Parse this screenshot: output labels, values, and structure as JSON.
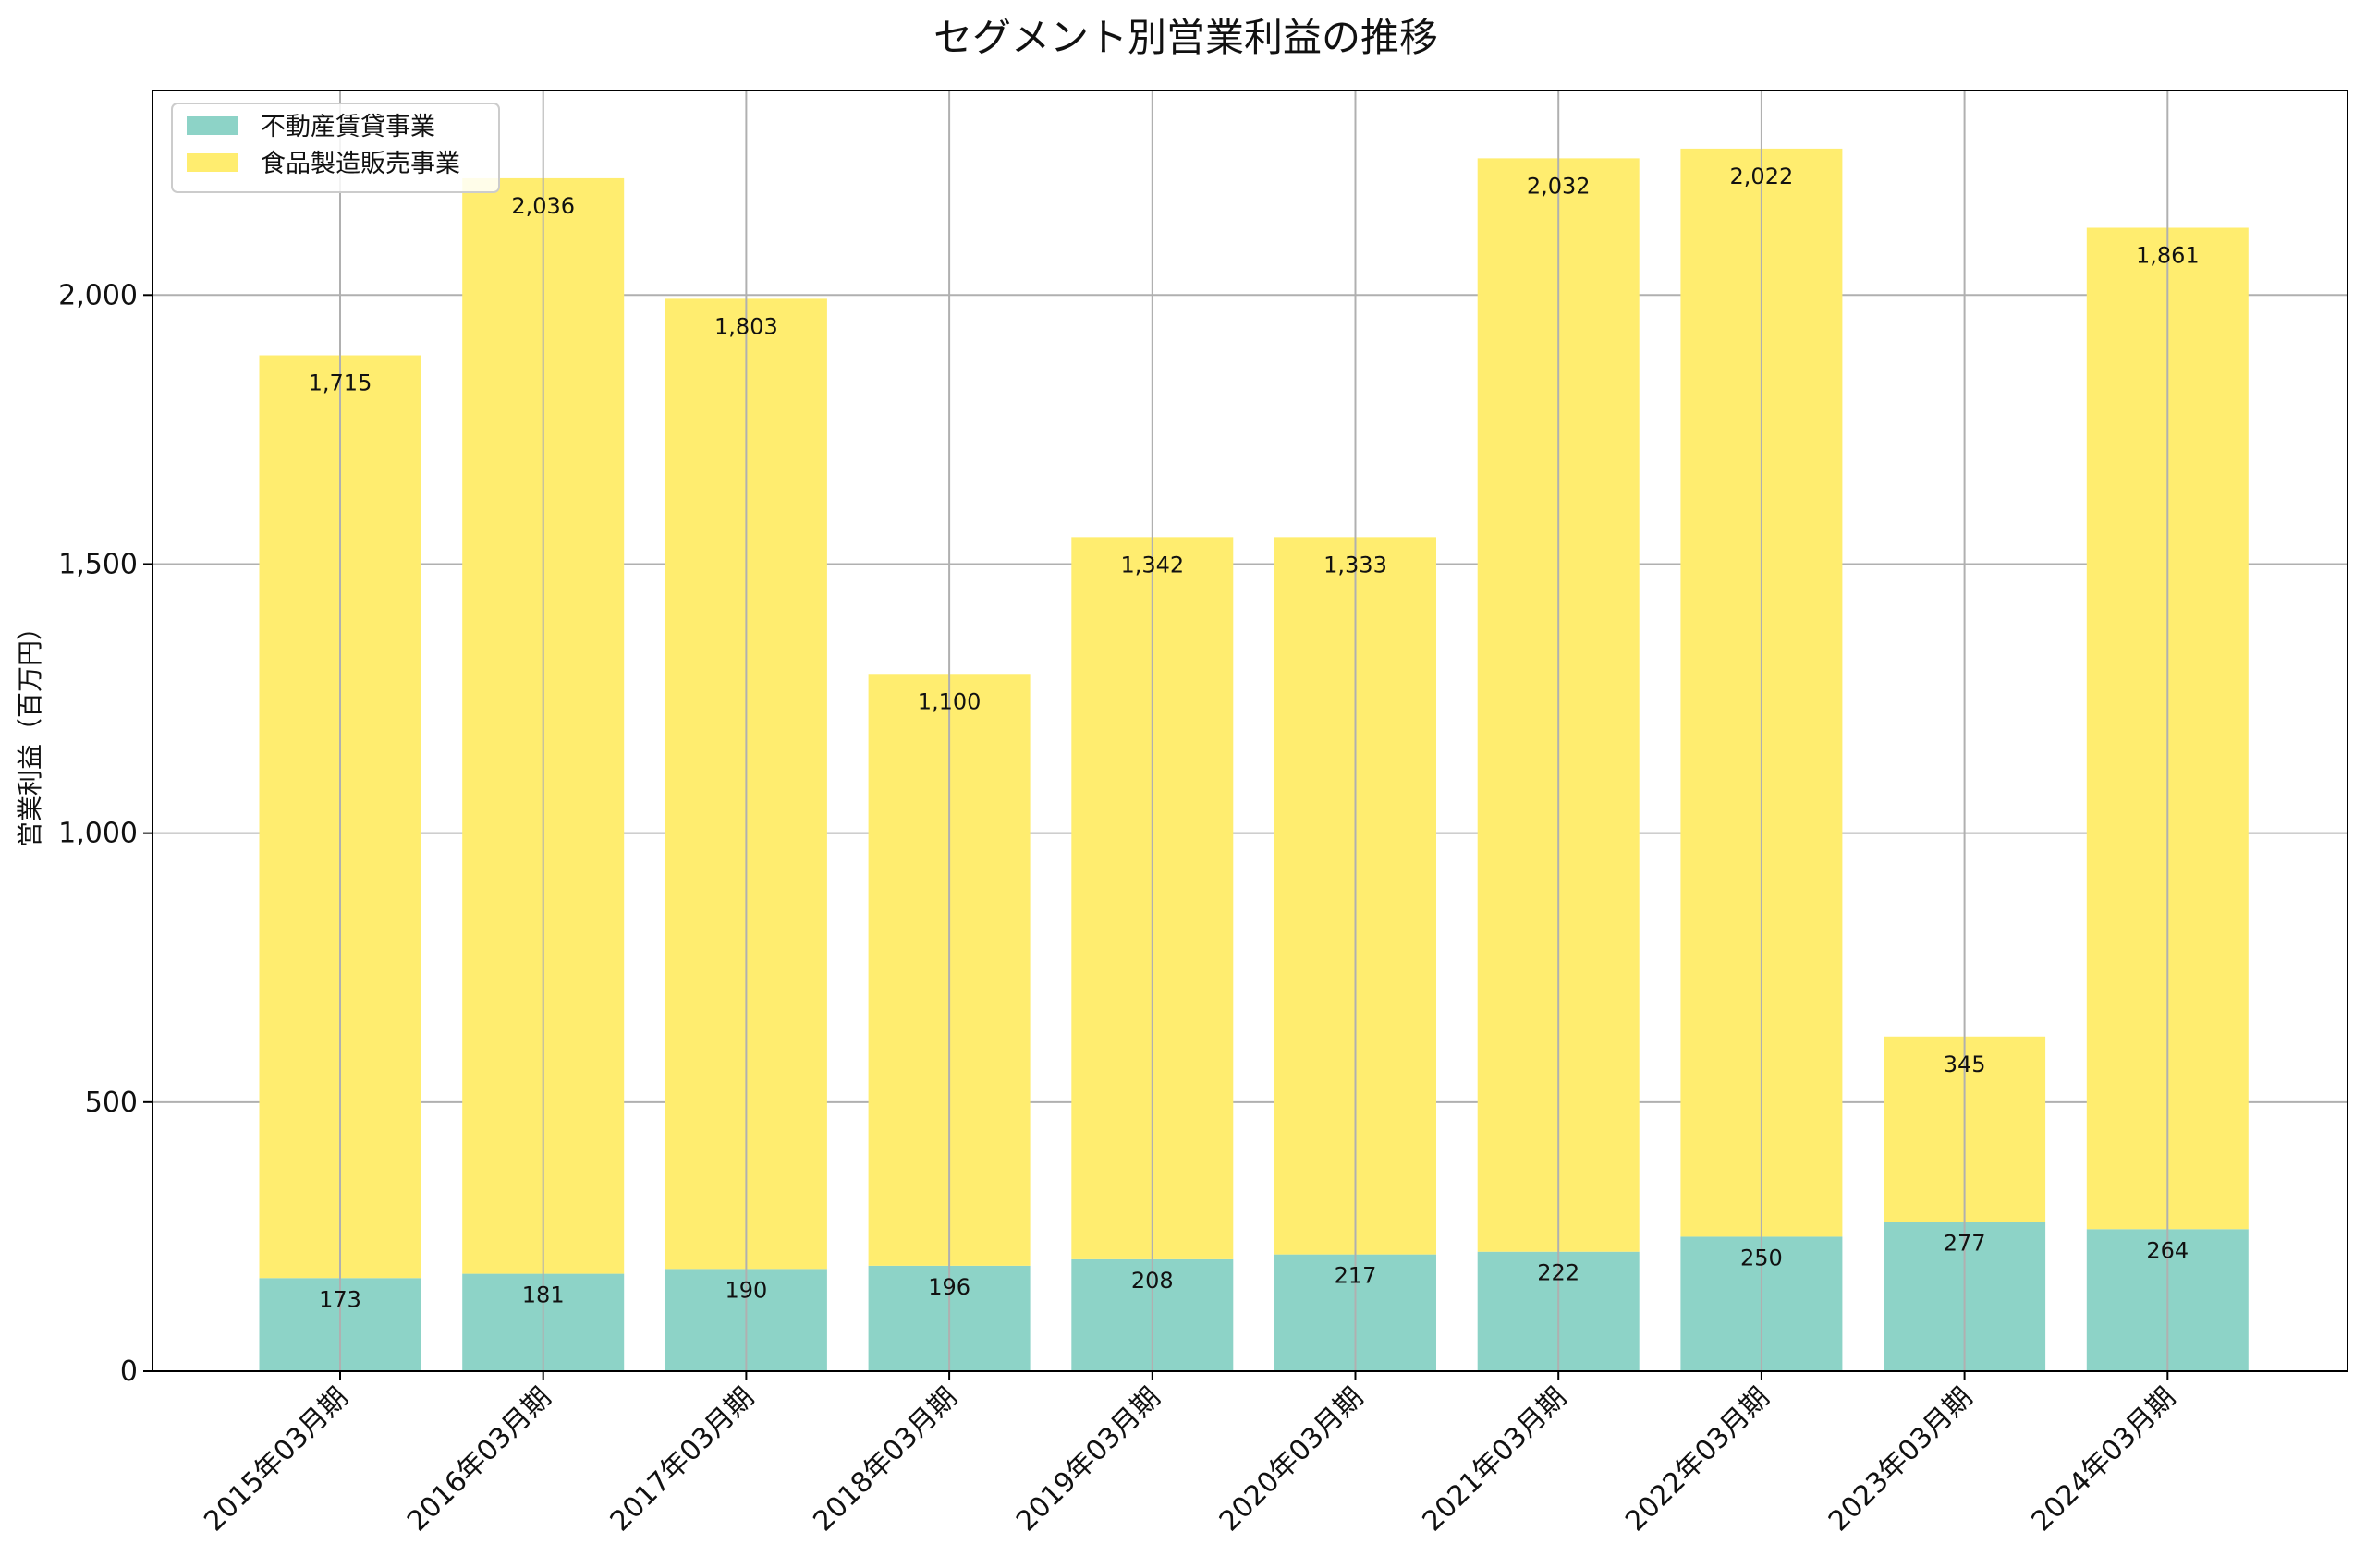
{
  "chart_data": {
    "type": "bar",
    "stacked": true,
    "title": "セグメント別営業利益の推移",
    "xlabel": "",
    "ylabel": "営業利益（百万円）",
    "ylim": [
      0,
      2380
    ],
    "yticks": [
      0,
      500,
      1000,
      1500,
      2000
    ],
    "ytick_labels": [
      "0",
      "500",
      "1,000",
      "1,500",
      "2,000"
    ],
    "grid": true,
    "legend_position": "top-left",
    "categories": [
      "2015年03月期",
      "2016年03月期",
      "2017年03月期",
      "2018年03月期",
      "2019年03月期",
      "2020年03月期",
      "2021年03月期",
      "2022年03月期",
      "2023年03月期",
      "2024年03月期"
    ],
    "series": [
      {
        "name": "不動産賃貸事業",
        "color": "#8dd3c7",
        "values": [
          173,
          181,
          190,
          196,
          208,
          217,
          222,
          250,
          277,
          264
        ],
        "labels": [
          "173",
          "181",
          "190",
          "196",
          "208",
          "217",
          "222",
          "250",
          "277",
          "264"
        ]
      },
      {
        "name": "食品製造販売事業",
        "color": "#ffed6f",
        "values": [
          1715,
          2036,
          1803,
          1100,
          1342,
          1333,
          2032,
          2022,
          345,
          1861
        ],
        "labels": [
          "1,715",
          "2,036",
          "1,803",
          "1,100",
          "1,342",
          "1,333",
          "2,032",
          "2,022",
          "345",
          "1,861"
        ]
      }
    ]
  }
}
